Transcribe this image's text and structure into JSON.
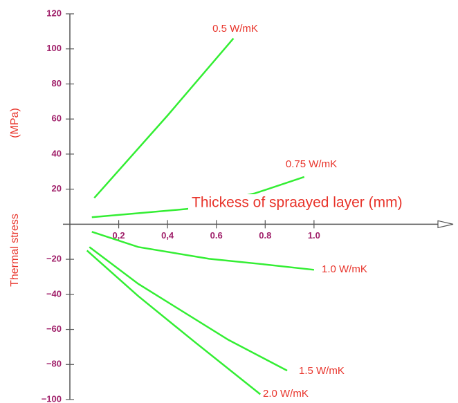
{
  "chart_data": {
    "type": "line",
    "xlabel": "Thickess of spraayed layer (mm)",
    "ylabel": [
      "(MPa)",
      "Thermal  stress"
    ],
    "xlim": [
      0,
      1.57
    ],
    "ylim": [
      -100,
      120
    ],
    "xticks": [
      {
        "value": 0.2,
        "label": "0,2"
      },
      {
        "value": 0.4,
        "label": "0,4"
      },
      0.6,
      0.8,
      {
        "value": 1.0,
        "label": "1.0"
      }
    ],
    "yticks": [
      120,
      100,
      80,
      60,
      40,
      20,
      {
        "value": -20,
        "label": "−20"
      },
      {
        "value": -40,
        "label": "−40"
      },
      {
        "value": -60,
        "label": "−60"
      },
      {
        "value": -80,
        "label": "−80"
      },
      {
        "value": -100,
        "label": "−100"
      }
    ],
    "series": [
      {
        "name": "0.5 W/mK",
        "color": "#33ee33",
        "x": [
          0.1,
          0.4,
          0.67
        ],
        "values": [
          15,
          62,
          106
        ]
      },
      {
        "name": "0.75 W/mK",
        "color": "#33ee33",
        "x": [
          0.09,
          0.48,
          0.76,
          0.96
        ],
        "values": [
          4,
          8.7,
          17.7,
          27
        ]
      },
      {
        "name": "1.0 W/mK",
        "color": "#33ee33",
        "x": [
          0.09,
          0.28,
          0.57,
          0.79,
          1.0
        ],
        "values": [
          -4.3,
          -13,
          -19.7,
          -22.8,
          -26
        ]
      },
      {
        "name": "1.5 W/mK",
        "color": "#33ee33",
        "x": [
          0.08,
          0.28,
          0.65,
          0.89
        ],
        "values": [
          -13,
          -34,
          -66,
          -83.5
        ]
      },
      {
        "name": "2.0 W/mK",
        "color": "#33ee33",
        "x": [
          0.07,
          0.28,
          0.51,
          0.78
        ],
        "values": [
          -15,
          -41,
          -67,
          -97
        ]
      }
    ]
  }
}
